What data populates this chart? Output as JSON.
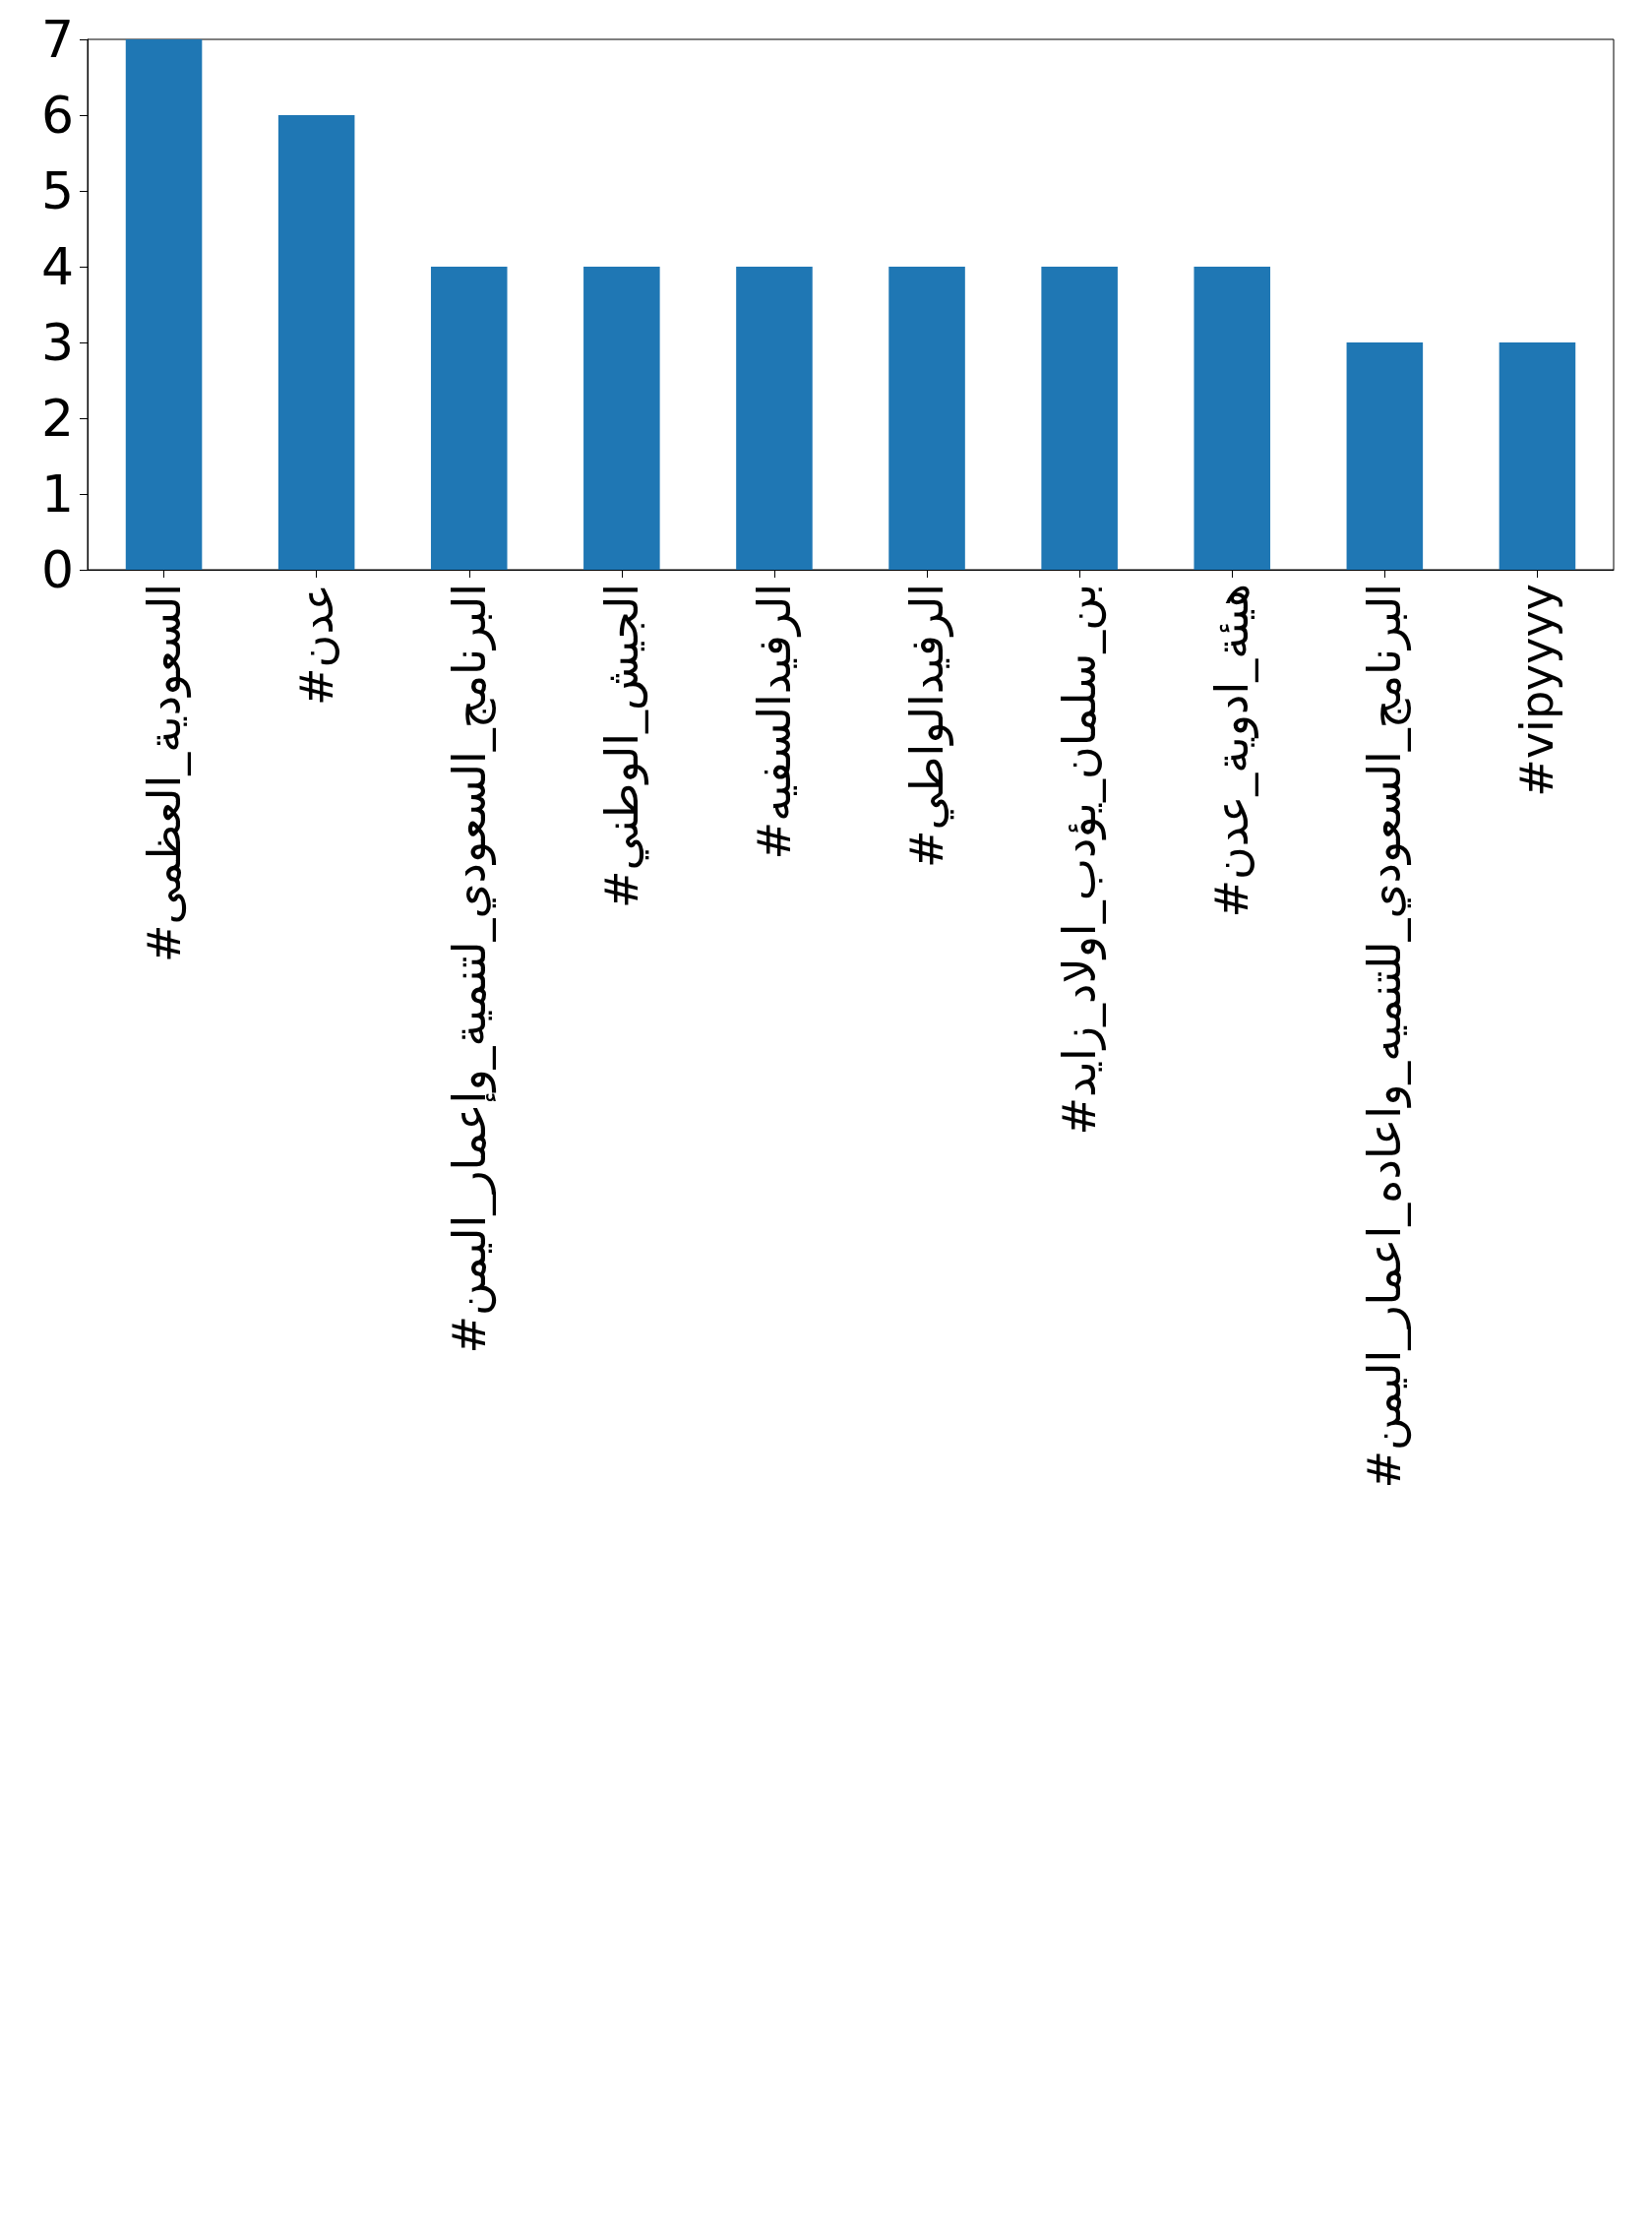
{
  "chart_data": {
    "type": "bar",
    "categories": [
      "#السعودية_العظمى",
      "#عدن",
      "#البرنامج_السعودي_لتنمية_وإعمار_اليمن",
      "#الجيش_الوطني",
      "#الرفيدالسفيه",
      "#الرفيدالواطي",
      "#بن_سلمان_يؤدب_اولاد_زايد",
      "#هيئة_ادوية_عدن",
      "#البرنامج_السعودي_للتنميه_واعاده_اعمار_اليمن",
      "#vipyyyy"
    ],
    "values": [
      7,
      6,
      4,
      4,
      4,
      4,
      4,
      4,
      3,
      3
    ],
    "color": "#1f77b4",
    "ylim": [
      0,
      7
    ],
    "yticks": [
      0,
      1,
      2,
      3,
      4,
      5,
      6,
      7
    ]
  }
}
